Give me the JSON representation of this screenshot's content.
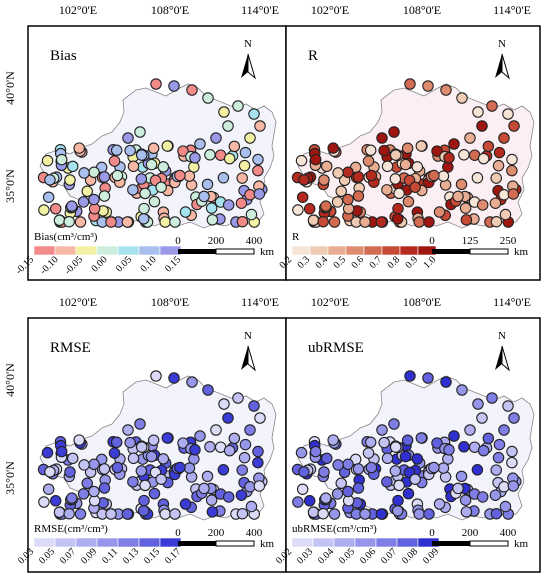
{
  "figure": {
    "panels": [
      {
        "title": "Bias",
        "legend": {
          "label": "Bias(cm³/cm³)",
          "ticks": [
            "-0.15",
            "-0.10",
            "-0.05",
            "0.00",
            "0.05",
            "0.10",
            "0.15"
          ],
          "colors": [
            "#f28a8a",
            "#f7b9a6",
            "#f3f1a4",
            "#cdeedd",
            "#a7e3ee",
            "#a9bfee",
            "#9a9ae8"
          ]
        },
        "scale": {
          "ticks": [
            "0",
            "200",
            "400"
          ],
          "unit": "km"
        }
      },
      {
        "title": "R",
        "legend": {
          "label": "R",
          "ticks": [
            "0.2",
            "0.3",
            "0.4",
            "0.5",
            "0.6",
            "0.7",
            "0.8",
            "0.9",
            "1.0"
          ],
          "colors": [
            "#f6e4d6",
            "#f0cbb4",
            "#e8ad92",
            "#de8c70",
            "#d36b52",
            "#c64a36",
            "#b52a1f",
            "#9f1610"
          ]
        },
        "scale": {
          "ticks": [
            "0",
            "125",
            "250"
          ],
          "unit": "km"
        }
      },
      {
        "title": "RMSE",
        "legend": {
          "label": "RMSE(cm³/cm³)",
          "ticks": [
            "0.03",
            "0.05",
            "0.07",
            "0.09",
            "0.11",
            "0.13",
            "0.15",
            "0.17"
          ],
          "colors": [
            "#dcdcf8",
            "#c4c4f4",
            "#adadf0",
            "#9696eb",
            "#7e7ee6",
            "#6262df",
            "#3b3bd6"
          ]
        },
        "scale": {
          "ticks": [
            "0",
            "200",
            "400"
          ],
          "unit": "km"
        }
      },
      {
        "title": "ubRMSE",
        "legend": {
          "label": "ubRMSE(cm³/cm³)",
          "ticks": [
            "0.02",
            "0.03",
            "0.04",
            "0.05",
            "0.06",
            "0.07",
            "0.08",
            "0.09"
          ],
          "colors": [
            "#dcdcf8",
            "#c4c4f4",
            "#adadf0",
            "#9696eb",
            "#7e7ee6",
            "#6262df",
            "#3030d0"
          ]
        },
        "scale": {
          "ticks": [
            "0",
            "200",
            "400"
          ],
          "unit": "km"
        }
      }
    ],
    "lon_labels": [
      "102°0'E",
      "108°0'E",
      "114°0'E"
    ],
    "lat_labels": [
      "40°0'N",
      "35°0'N"
    ],
    "north_label": "N"
  }
}
